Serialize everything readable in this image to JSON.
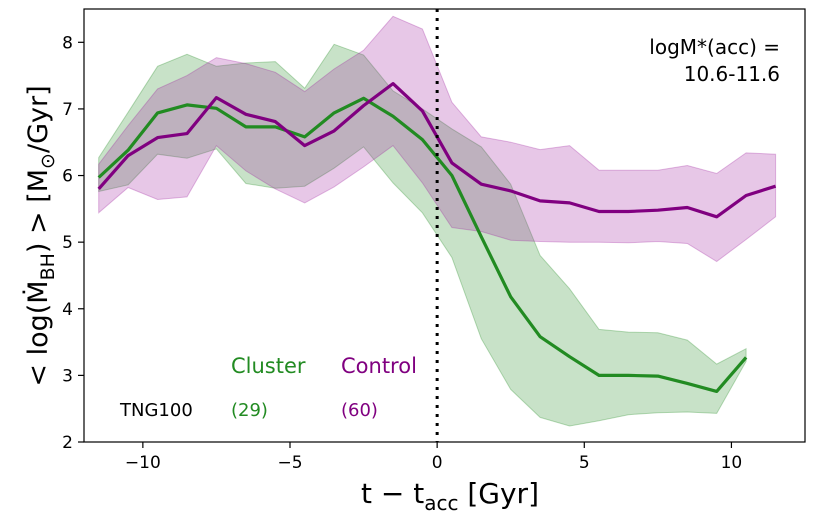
{
  "chart_data": {
    "type": "line",
    "xlabel_main": "t − t",
    "xlabel_sub": "acc",
    "xlabel_unit": " [Gyr]",
    "ylabel_pre": "< log(",
    "ylabel_M": "Ṁ",
    "ylabel_sub": "BH",
    "ylabel_post": ") >  [M",
    "ylabel_sun": "⊙",
    "ylabel_unit": "/Gyr]",
    "xlim": [
      -12.0,
      12.5
    ],
    "ylim": [
      2,
      8.5
    ],
    "xticks": [
      -10,
      -5,
      0,
      5,
      10
    ],
    "xtick_labels": [
      "−10",
      "−5",
      "0",
      "5",
      "10"
    ],
    "yticks": [
      2,
      3,
      4,
      5,
      6,
      7,
      8
    ],
    "ytick_labels": [
      "2",
      "3",
      "4",
      "5",
      "6",
      "7",
      "8"
    ],
    "vline_x": 0,
    "annotation_line1": "logM*(acc) =",
    "annotation_line2": "10.6-11.6",
    "sim_label": "TNG100",
    "series": [
      {
        "name": "Cluster",
        "count_label": "(29)",
        "color": "#228b22",
        "fill": "#228b22",
        "x": [
          -11.5,
          -10.5,
          -9.5,
          -8.5,
          -7.5,
          -6.5,
          -5.5,
          -4.5,
          -3.5,
          -2.5,
          -1.5,
          -0.5,
          0.5,
          1.5,
          2.5,
          3.5,
          4.5,
          5.5,
          6.5,
          7.5,
          8.5,
          9.5,
          10.5
        ],
        "y": [
          5.97,
          6.38,
          6.94,
          7.06,
          7.01,
          6.73,
          6.73,
          6.58,
          6.94,
          7.16,
          6.89,
          6.54,
          6.0,
          5.08,
          4.18,
          3.58,
          3.28,
          3.0,
          3.0,
          2.99,
          2.88,
          2.76,
          3.27
        ],
        "upper": [
          6.27,
          6.95,
          7.64,
          7.82,
          7.64,
          7.69,
          7.71,
          7.31,
          7.97,
          7.81,
          7.27,
          7.0,
          6.7,
          6.43,
          5.87,
          4.8,
          4.3,
          3.69,
          3.65,
          3.64,
          3.53,
          3.17,
          3.4
        ],
        "lower": [
          5.76,
          5.86,
          6.32,
          6.26,
          6.4,
          5.88,
          5.81,
          5.84,
          6.11,
          6.43,
          5.89,
          5.44,
          4.77,
          3.55,
          2.79,
          2.37,
          2.24,
          2.32,
          2.41,
          2.44,
          2.45,
          2.43,
          3.21
        ]
      },
      {
        "name": "Control",
        "count_label": "(60)",
        "color": "#800080",
        "fill": "#a020a0",
        "x": [
          -11.5,
          -10.5,
          -9.5,
          -8.5,
          -7.5,
          -6.5,
          -5.5,
          -4.5,
          -3.5,
          -2.5,
          -1.5,
          -0.5,
          0.5,
          1.5,
          2.5,
          3.5,
          4.5,
          5.5,
          6.5,
          7.5,
          8.5,
          9.5,
          10.5,
          11.5
        ],
        "y": [
          5.8,
          6.3,
          6.57,
          6.63,
          7.17,
          6.92,
          6.81,
          6.45,
          6.67,
          7.05,
          7.38,
          6.97,
          6.19,
          5.87,
          5.77,
          5.62,
          5.59,
          5.46,
          5.46,
          5.48,
          5.52,
          5.38,
          5.7,
          5.84
        ],
        "upper": [
          6.17,
          6.75,
          7.3,
          7.5,
          7.77,
          7.68,
          7.55,
          7.26,
          7.6,
          7.88,
          8.39,
          8.2,
          7.1,
          6.58,
          6.5,
          6.39,
          6.45,
          6.08,
          6.08,
          6.08,
          6.15,
          6.03,
          6.34,
          6.32
        ],
        "lower": [
          5.44,
          5.82,
          5.64,
          5.68,
          6.45,
          6.07,
          5.8,
          5.59,
          5.83,
          6.13,
          6.45,
          5.89,
          5.22,
          5.16,
          5.03,
          5.01,
          5.0,
          5.0,
          4.99,
          5.01,
          4.98,
          4.71,
          5.04,
          5.38
        ]
      }
    ]
  }
}
